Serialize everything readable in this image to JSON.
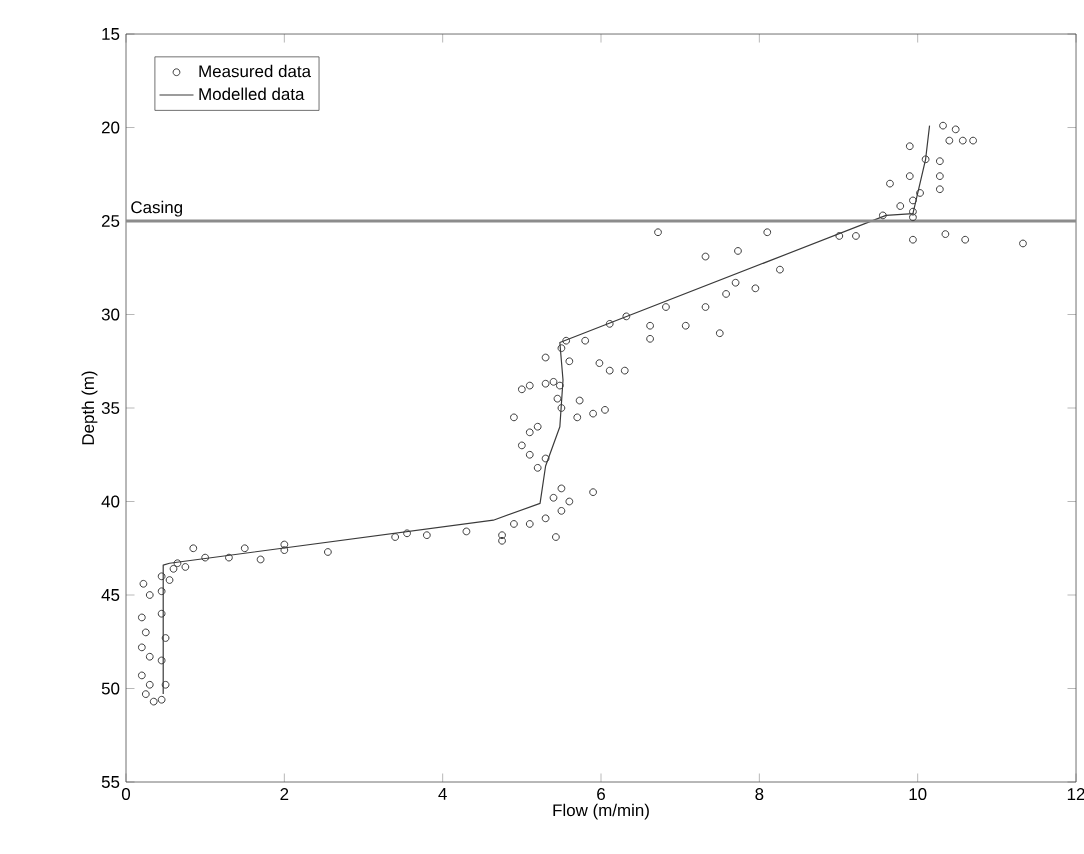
{
  "chart_data": {
    "type": "scatter",
    "xlabel": "Flow (m/min)",
    "ylabel": "Depth (m)",
    "xlim": [
      0,
      12
    ],
    "ylim": [
      55,
      15
    ],
    "xticks": [
      0,
      2,
      4,
      6,
      8,
      10,
      12
    ],
    "yticks": [
      15,
      20,
      25,
      30,
      35,
      40,
      45,
      50,
      55
    ],
    "legend": "top left",
    "ref_lines": [
      {
        "axis": "y",
        "value": 25,
        "label": "Casing",
        "color": "#8c8c8c"
      }
    ],
    "series": [
      {
        "name": "Measured data",
        "marker": "circle",
        "color": "#3a3a3a",
        "x": [
          0.22,
          0.2,
          0.25,
          0.2,
          0.3,
          0.2,
          0.3,
          0.25,
          0.35,
          0.45,
          0.5,
          0.45,
          0.5,
          0.45,
          0.3,
          0.45,
          0.55,
          0.45,
          0.6,
          0.65,
          0.75,
          0.85,
          1.0,
          1.3,
          1.5,
          1.7,
          2.0,
          2.0,
          2.55,
          3.4,
          3.55,
          3.8,
          4.3,
          4.75,
          4.75,
          4.9,
          5.1,
          5.3,
          5.5,
          5.4,
          5.5,
          5.6,
          5.9,
          5.43,
          5.0,
          5.1,
          5.2,
          5.3,
          4.9,
          5.1,
          5.2,
          5.0,
          5.1,
          5.3,
          5.45,
          5.5,
          5.7,
          5.9,
          5.6,
          5.3,
          5.5,
          5.4,
          5.56,
          5.8,
          5.98,
          6.11,
          6.3,
          5.48,
          5.73,
          6.05,
          6.11,
          6.32,
          6.62,
          6.62,
          7.07,
          6.82,
          7.32,
          7.5,
          7.58,
          7.7,
          7.95,
          8.26,
          7.32,
          7.73,
          6.72,
          8.1,
          9.01,
          9.22,
          9.56,
          9.94,
          9.94,
          10.35,
          10.6,
          11.33,
          9.65,
          9.94,
          10.03,
          9.9,
          10.28,
          10.28,
          9.9,
          10.1,
          10.28,
          10.32,
          10.48,
          10.57,
          10.7,
          10.4,
          9.78,
          9.94
        ],
        "values": [
          44.4,
          46.2,
          47,
          47.8,
          48.3,
          49.3,
          49.8,
          50.3,
          50.7,
          50.6,
          49.8,
          48.5,
          47.3,
          46,
          45,
          44.8,
          44.2,
          44,
          43.6,
          43.3,
          43.5,
          42.5,
          43.0,
          43.0,
          42.5,
          43.1,
          42.3,
          42.6,
          42.7,
          41.9,
          41.7,
          41.8,
          41.6,
          41.8,
          42.1,
          41.2,
          41.2,
          40.9,
          40.5,
          39.8,
          39.3,
          40,
          39.5,
          41.9,
          37,
          37.5,
          38.2,
          37.7,
          35.5,
          36.3,
          36.0,
          34,
          33.8,
          33.7,
          34.5,
          35.0,
          35.5,
          35.3,
          32.5,
          32.3,
          31.8,
          33.6,
          31.4,
          31.4,
          32.6,
          33.0,
          33.0,
          33.8,
          34.6,
          35.1,
          30.5,
          30.1,
          30.6,
          31.3,
          30.6,
          29.6,
          29.6,
          31.0,
          28.9,
          28.3,
          28.6,
          27.6,
          26.9,
          26.6,
          25.6,
          25.6,
          25.8,
          25.8,
          24.7,
          24.5,
          26.0,
          25.7,
          26.0,
          26.2,
          23.0,
          23.9,
          23.5,
          22.6,
          23.3,
          22.6,
          21.0,
          21.7,
          21.8,
          19.9,
          20.1,
          20.7,
          20.7,
          20.7,
          24.2,
          24.8
        ]
      },
      {
        "name": "Modelled data",
        "type": "line",
        "color": "#3a3a3a",
        "x": [
          0.47,
          0.47,
          0.55,
          4.64,
          5.23,
          5.3,
          5.48,
          5.52,
          5.48,
          9.6,
          9.94,
          10.1,
          10.15
        ],
        "values": [
          50.3,
          43.4,
          43.3,
          41.0,
          40.1,
          38.1,
          36.0,
          33.5,
          31.5,
          24.7,
          24.6,
          21.7,
          19.9
        ]
      }
    ]
  }
}
